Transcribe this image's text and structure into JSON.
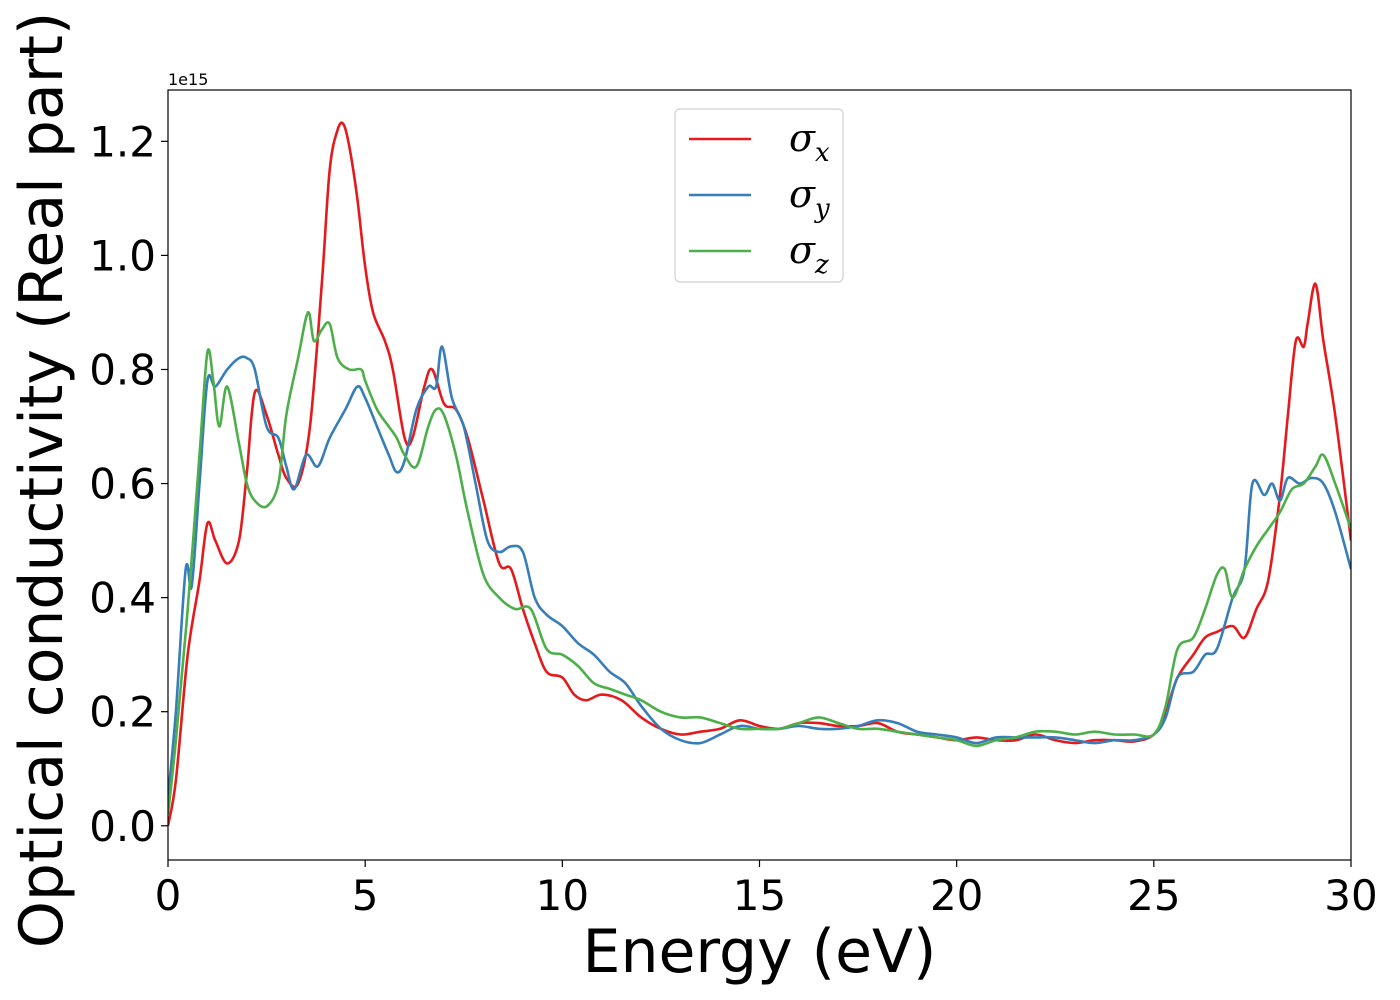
{
  "chart_data": {
    "type": "line",
    "xlabel": "Energy (eV)",
    "ylabel": "Optical conductivity (Real part)",
    "y_offset_label": "1e15",
    "xlim": [
      0,
      30
    ],
    "ylim": [
      -0.06,
      1.29
    ],
    "xticks": [
      0,
      5,
      10,
      15,
      20,
      25,
      30
    ],
    "xtick_labels": [
      "0",
      "5",
      "10",
      "15",
      "20",
      "25",
      "30"
    ],
    "yticks": [
      0.0,
      0.2,
      0.4,
      0.6,
      0.8,
      1.0,
      1.2
    ],
    "ytick_labels": [
      "0.0",
      "0.2",
      "0.4",
      "0.6",
      "0.8",
      "1.0",
      "1.2"
    ],
    "grid": false,
    "legend_position": "top-center",
    "series": [
      {
        "name": "σx",
        "legend_symbol": "σ",
        "legend_sub": "x",
        "color": "#e41a1c",
        "x": [
          0,
          0.2,
          0.5,
          0.8,
          1.0,
          1.2,
          1.5,
          1.8,
          2.0,
          2.2,
          2.5,
          2.8,
          3.0,
          3.3,
          3.6,
          3.9,
          4.1,
          4.3,
          4.45,
          4.6,
          4.8,
          5.0,
          5.2,
          5.5,
          5.7,
          6.0,
          6.2,
          6.5,
          6.7,
          7.0,
          7.3,
          7.6,
          8.0,
          8.4,
          8.7,
          9.0,
          9.3,
          9.6,
          10.0,
          10.3,
          10.6,
          11.0,
          11.5,
          12.0,
          12.5,
          13.0,
          13.5,
          14.0,
          14.5,
          15.0,
          15.5,
          16.0,
          16.5,
          17.0,
          17.5,
          18.0,
          18.5,
          19.0,
          19.5,
          20.0,
          20.5,
          21.0,
          21.5,
          22.0,
          22.5,
          23.0,
          23.5,
          24.0,
          24.5,
          25.0,
          25.3,
          25.6,
          26.0,
          26.3,
          26.6,
          27.0,
          27.3,
          27.6,
          27.9,
          28.2,
          28.4,
          28.6,
          28.8,
          28.9,
          29.1,
          29.3,
          29.6,
          30.0
        ],
        "y": [
          0.0,
          0.08,
          0.3,
          0.43,
          0.53,
          0.5,
          0.46,
          0.5,
          0.62,
          0.76,
          0.72,
          0.65,
          0.61,
          0.6,
          0.7,
          0.95,
          1.15,
          1.22,
          1.23,
          1.19,
          1.1,
          0.98,
          0.9,
          0.85,
          0.8,
          0.68,
          0.68,
          0.77,
          0.8,
          0.74,
          0.73,
          0.68,
          0.57,
          0.46,
          0.45,
          0.38,
          0.32,
          0.27,
          0.26,
          0.23,
          0.22,
          0.23,
          0.22,
          0.19,
          0.17,
          0.16,
          0.165,
          0.17,
          0.185,
          0.175,
          0.17,
          0.18,
          0.18,
          0.175,
          0.175,
          0.18,
          0.165,
          0.16,
          0.155,
          0.15,
          0.155,
          0.15,
          0.15,
          0.16,
          0.15,
          0.145,
          0.15,
          0.15,
          0.148,
          0.16,
          0.2,
          0.26,
          0.3,
          0.33,
          0.34,
          0.35,
          0.33,
          0.38,
          0.43,
          0.58,
          0.72,
          0.85,
          0.84,
          0.88,
          0.95,
          0.85,
          0.72,
          0.5
        ]
      },
      {
        "name": "σy",
        "legend_symbol": "σ",
        "legend_sub": "y",
        "color": "#377eb8",
        "x": [
          0,
          0.2,
          0.45,
          0.6,
          0.8,
          1.0,
          1.2,
          1.5,
          1.8,
          2.0,
          2.2,
          2.5,
          2.8,
          3.0,
          3.2,
          3.5,
          3.8,
          4.1,
          4.5,
          4.8,
          5.0,
          5.3,
          5.6,
          5.8,
          6.0,
          6.3,
          6.6,
          6.8,
          6.95,
          7.2,
          7.5,
          7.8,
          8.1,
          8.4,
          8.7,
          9.0,
          9.3,
          9.6,
          10.0,
          10.4,
          10.8,
          11.2,
          11.6,
          12.0,
          12.5,
          13.0,
          13.5,
          14.0,
          14.5,
          15.0,
          15.5,
          16.0,
          16.5,
          17.0,
          17.5,
          18.0,
          18.5,
          19.0,
          19.5,
          20.0,
          20.5,
          21.0,
          21.5,
          22.0,
          22.5,
          23.0,
          23.5,
          24.0,
          24.5,
          25.0,
          25.3,
          25.6,
          26.0,
          26.3,
          26.6,
          27.0,
          27.3,
          27.5,
          27.8,
          28.0,
          28.2,
          28.4,
          28.7,
          29.0,
          29.3,
          29.6,
          30.0
        ],
        "y": [
          0.05,
          0.2,
          0.45,
          0.42,
          0.6,
          0.78,
          0.77,
          0.8,
          0.82,
          0.82,
          0.8,
          0.7,
          0.68,
          0.63,
          0.59,
          0.65,
          0.63,
          0.68,
          0.73,
          0.77,
          0.75,
          0.7,
          0.65,
          0.62,
          0.64,
          0.73,
          0.77,
          0.77,
          0.84,
          0.75,
          0.7,
          0.6,
          0.5,
          0.48,
          0.49,
          0.48,
          0.4,
          0.37,
          0.35,
          0.32,
          0.3,
          0.27,
          0.25,
          0.21,
          0.17,
          0.15,
          0.145,
          0.16,
          0.175,
          0.17,
          0.17,
          0.175,
          0.17,
          0.17,
          0.175,
          0.185,
          0.18,
          0.165,
          0.16,
          0.155,
          0.145,
          0.155,
          0.155,
          0.155,
          0.155,
          0.15,
          0.145,
          0.15,
          0.15,
          0.16,
          0.19,
          0.26,
          0.27,
          0.3,
          0.31,
          0.4,
          0.45,
          0.6,
          0.58,
          0.6,
          0.57,
          0.61,
          0.6,
          0.61,
          0.6,
          0.55,
          0.45
        ]
      },
      {
        "name": "σz",
        "legend_symbol": "σ",
        "legend_sub": "z",
        "color": "#4daf4a",
        "x": [
          0,
          0.2,
          0.5,
          0.8,
          1.0,
          1.15,
          1.3,
          1.5,
          1.8,
          2.0,
          2.2,
          2.5,
          2.8,
          3.0,
          3.3,
          3.55,
          3.7,
          3.9,
          4.1,
          4.3,
          4.6,
          4.9,
          5.0,
          5.3,
          5.6,
          5.8,
          6.0,
          6.3,
          6.6,
          6.8,
          7.0,
          7.3,
          7.6,
          8.0,
          8.4,
          8.8,
          9.2,
          9.6,
          10.0,
          10.4,
          10.8,
          11.2,
          11.6,
          12.0,
          12.5,
          13.0,
          13.5,
          14.0,
          14.5,
          15.0,
          15.5,
          16.0,
          16.5,
          17.0,
          17.5,
          18.0,
          18.5,
          19.0,
          19.5,
          20.0,
          20.5,
          21.0,
          21.5,
          22.0,
          22.5,
          23.0,
          23.5,
          24.0,
          24.5,
          25.0,
          25.3,
          25.6,
          26.0,
          26.3,
          26.6,
          26.8,
          27.0,
          27.3,
          27.6,
          27.9,
          28.2,
          28.5,
          28.8,
          29.1,
          29.3,
          29.6,
          30.0
        ],
        "y": [
          0.02,
          0.15,
          0.38,
          0.65,
          0.83,
          0.78,
          0.7,
          0.77,
          0.67,
          0.6,
          0.57,
          0.56,
          0.6,
          0.72,
          0.82,
          0.9,
          0.85,
          0.87,
          0.88,
          0.82,
          0.8,
          0.8,
          0.78,
          0.73,
          0.7,
          0.68,
          0.65,
          0.63,
          0.7,
          0.73,
          0.72,
          0.65,
          0.55,
          0.44,
          0.4,
          0.38,
          0.38,
          0.31,
          0.3,
          0.28,
          0.25,
          0.24,
          0.23,
          0.22,
          0.2,
          0.19,
          0.19,
          0.18,
          0.17,
          0.17,
          0.17,
          0.18,
          0.19,
          0.18,
          0.17,
          0.17,
          0.165,
          0.16,
          0.155,
          0.15,
          0.14,
          0.15,
          0.155,
          0.165,
          0.165,
          0.16,
          0.165,
          0.16,
          0.16,
          0.16,
          0.21,
          0.31,
          0.33,
          0.38,
          0.44,
          0.45,
          0.4,
          0.45,
          0.49,
          0.52,
          0.55,
          0.59,
          0.6,
          0.63,
          0.65,
          0.6,
          0.52
        ]
      }
    ]
  }
}
